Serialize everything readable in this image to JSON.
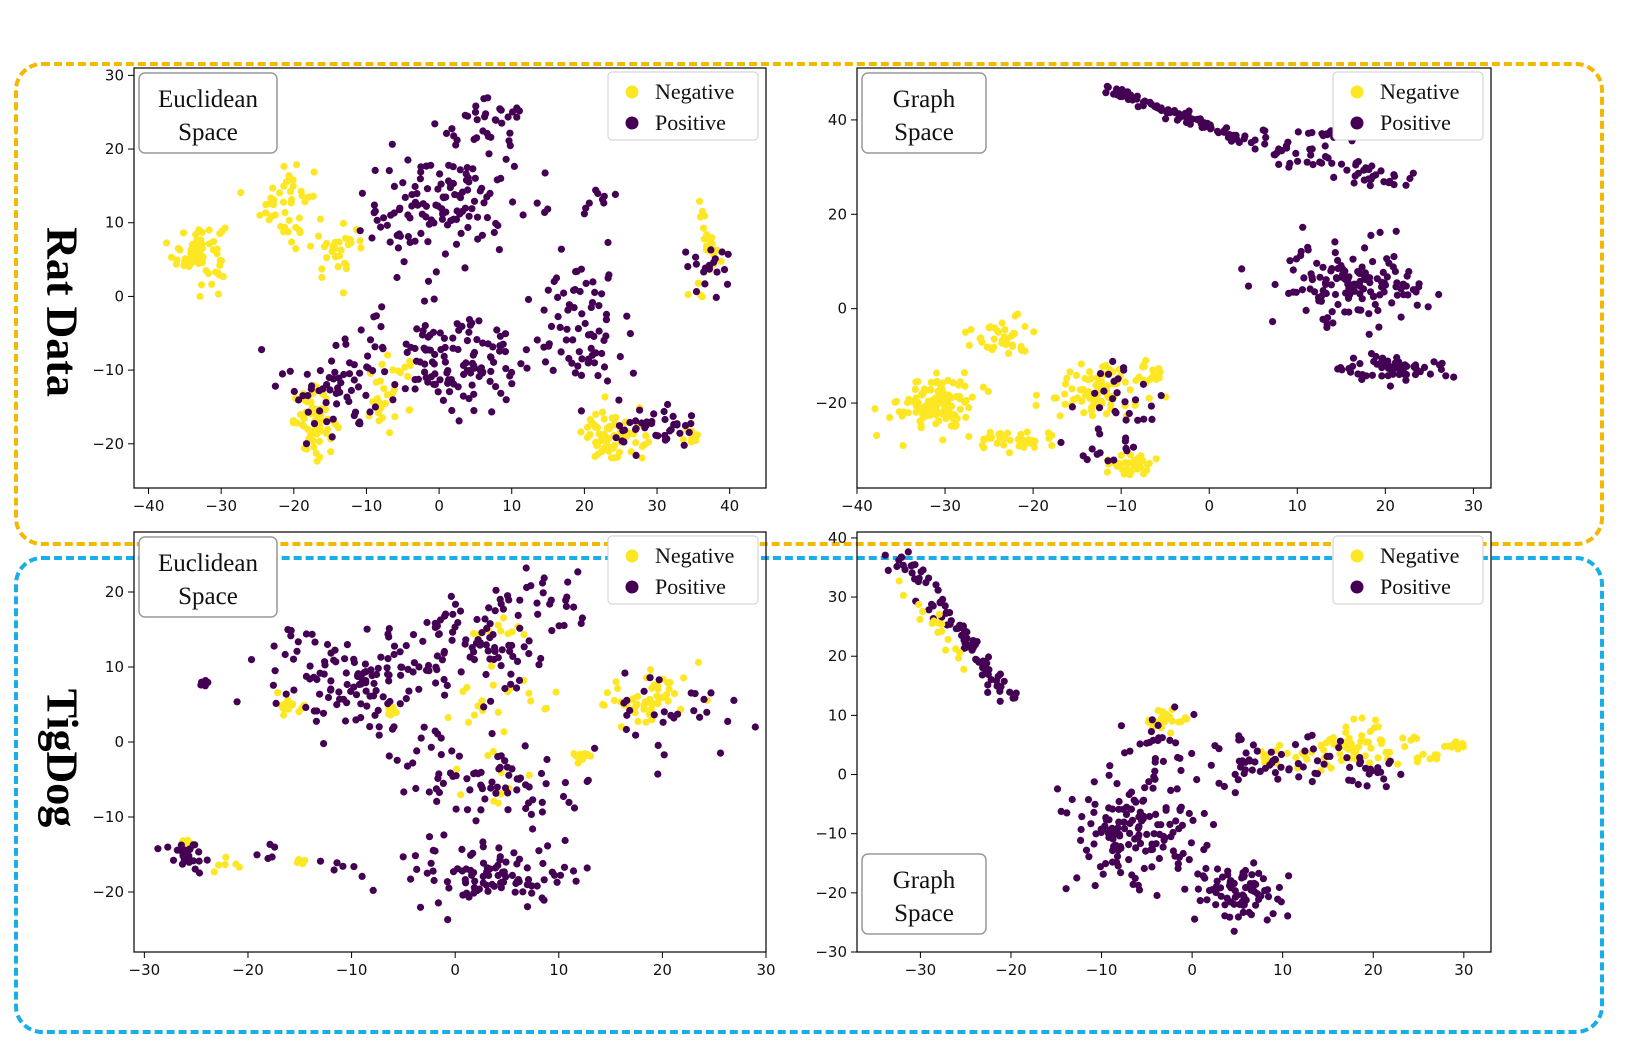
{
  "figure": {
    "group_labels": {
      "rat": "Rat Data",
      "tigdog": "TigDog"
    },
    "colors": {
      "negative": "#fde725",
      "positive": "#440154",
      "rat_frame": "#f5b800",
      "tigdog_frame": "#1aaee8"
    }
  },
  "chart_data": [
    {
      "type": "scatter",
      "group": "Rat Data",
      "annotation": [
        "Euclidean",
        "Space"
      ],
      "legend": [
        "Negative",
        "Positive"
      ],
      "legend_position": "top-right",
      "xlim": [
        -42,
        45
      ],
      "ylim": [
        -26,
        31
      ],
      "xticks": [
        -40,
        -30,
        -20,
        -10,
        0,
        10,
        20,
        30,
        40
      ],
      "yticks": [
        -20,
        -10,
        0,
        10,
        20,
        30
      ],
      "xtick_labels": [
        "−40",
        "−30",
        "−20",
        "−10",
        "0",
        "10",
        "20",
        "30",
        "40"
      ],
      "ytick_labels": [
        "−20",
        "−10",
        "0",
        "10",
        "20",
        "30"
      ],
      "grid": false,
      "series": [
        {
          "name": "Negative",
          "clusters": [
            {
              "center": [
                -33,
                6
              ],
              "spread": [
                3,
                3.5
              ],
              "n": 70
            },
            {
              "center": [
                -21,
                13
              ],
              "spread": [
                3,
                5
              ],
              "n": 45
            },
            {
              "center": [
                -14,
                6
              ],
              "spread": [
                3,
                3
              ],
              "n": 30
            },
            {
              "center": [
                -17,
                -17
              ],
              "spread": [
                2.5,
                3.5
              ],
              "n": 60
            },
            {
              "center": [
                -7,
                -13
              ],
              "spread": [
                4,
                4
              ],
              "n": 30
            },
            {
              "center": [
                24,
                -19
              ],
              "spread": [
                3.5,
                3
              ],
              "n": 70
            },
            {
              "center": [
                37,
                8
              ],
              "spread": [
                1,
                3
              ],
              "n": 25
            },
            {
              "center": [
                35,
                -19
              ],
              "spread": [
                1.5,
                1
              ],
              "n": 8
            },
            {
              "center": [
                36,
                1
              ],
              "spread": [
                1,
                1
              ],
              "n": 4
            }
          ]
        },
        {
          "name": "Positive",
          "clusters": [
            {
              "center": [
                0,
                12
              ],
              "spread": [
                9,
                7
              ],
              "n": 130
            },
            {
              "center": [
                -14,
                -12
              ],
              "spread": [
                6,
                6
              ],
              "n": 60
            },
            {
              "center": [
                2,
                -8
              ],
              "spread": [
                10,
                6
              ],
              "n": 130
            },
            {
              "center": [
                20,
                -4
              ],
              "spread": [
                6,
                8
              ],
              "n": 70
            },
            {
              "center": [
                30,
                -18
              ],
              "spread": [
                5,
                3
              ],
              "n": 40
            },
            {
              "center": [
                37,
                3
              ],
              "spread": [
                3,
                3
              ],
              "n": 20
            },
            {
              "center": [
                22,
                13
              ],
              "spread": [
                2,
                2
              ],
              "n": 8
            },
            {
              "center": [
                7,
                24
              ],
              "spread": [
                4,
                3
              ],
              "n": 30
            }
          ]
        }
      ]
    },
    {
      "type": "scatter",
      "group": "Rat Data",
      "annotation": [
        "Graph",
        "Space"
      ],
      "legend": [
        "Negative",
        "Positive"
      ],
      "legend_position": "top-right",
      "xlim": [
        -40,
        32
      ],
      "ylim": [
        -38,
        51
      ],
      "xticks": [
        -40,
        -30,
        -20,
        -10,
        0,
        10,
        20,
        30
      ],
      "yticks": [
        -20,
        0,
        20,
        40
      ],
      "xtick_labels": [
        "−40",
        "−30",
        "−20",
        "−10",
        "0",
        "10",
        "20",
        "30"
      ],
      "ytick_labels": [
        "−20",
        "0",
        "20",
        "40"
      ],
      "grid": false,
      "series": [
        {
          "name": "Negative",
          "clusters": [
            {
              "center": [
                -31,
                -20
              ],
              "spread": [
                3.5,
                5
              ],
              "n": 120
            },
            {
              "center": [
                -22,
                -28
              ],
              "spread": [
                4,
                2
              ],
              "n": 40
            },
            {
              "center": [
                -24,
                -6
              ],
              "spread": [
                3,
                3
              ],
              "n": 40
            },
            {
              "center": [
                -13,
                -18
              ],
              "spread": [
                5,
                5
              ],
              "n": 80
            },
            {
              "center": [
                -9,
                -33
              ],
              "spread": [
                2,
                2
              ],
              "n": 40
            },
            {
              "center": [
                -7,
                -14
              ],
              "spread": [
                2,
                2
              ],
              "n": 20
            }
          ]
        },
        {
          "name": "Positive",
          "line": {
            "from": [
              -12,
              47
            ],
            "to": [
              5,
              35
            ],
            "n": 90,
            "jitter": 1
          }
        },
        {
          "name": "Positive",
          "line": {
            "from": [
              5,
              35
            ],
            "to": [
              22,
              27
            ],
            "n": 60,
            "jitter": 2.5
          }
        },
        {
          "name": "Positive",
          "clusters": [
            {
              "center": [
                14,
                37
              ],
              "spread": [
                3,
                1
              ],
              "n": 25
            },
            {
              "center": [
                16,
                5
              ],
              "spread": [
                7,
                7
              ],
              "n": 140
            },
            {
              "center": [
                21,
                -13
              ],
              "spread": [
                5,
                2.5
              ],
              "n": 60
            },
            {
              "center": [
                -10,
                -20
              ],
              "spread": [
                4,
                8
              ],
              "n": 30
            },
            {
              "center": [
                -12,
                -31
              ],
              "spread": [
                3,
                2
              ],
              "n": 10
            }
          ]
        }
      ]
    },
    {
      "type": "scatter",
      "group": "TigDog",
      "annotation": [
        "Euclidean",
        "Space"
      ],
      "legend": [
        "Negative",
        "Positive"
      ],
      "legend_position": "top-right",
      "xlim": [
        -31,
        30
      ],
      "ylim": [
        -28,
        28
      ],
      "xticks": [
        -30,
        -20,
        -10,
        0,
        10,
        20,
        30
      ],
      "yticks": [
        -20,
        -10,
        0,
        10,
        20
      ],
      "xtick_labels": [
        "−30",
        "−20",
        "−10",
        "0",
        "10",
        "20",
        "30"
      ],
      "ytick_labels": [
        "−20",
        "−10",
        "0",
        "10",
        "20"
      ],
      "grid": false,
      "series": [
        {
          "name": "Negative",
          "clusters": [
            {
              "center": [
                19,
                6
              ],
              "spread": [
                4,
                3
              ],
              "n": 55
            },
            {
              "center": [
                -16,
                5
              ],
              "spread": [
                1.5,
                1.5
              ],
              "n": 15
            },
            {
              "center": [
                12,
                -2
              ],
              "spread": [
                0.8,
                0.8
              ],
              "n": 12
            },
            {
              "center": [
                -26,
                -14
              ],
              "spread": [
                1,
                0.8
              ],
              "n": 12
            },
            {
              "center": [
                -15,
                -16
              ],
              "spread": [
                0.6,
                0.6
              ],
              "n": 6
            },
            {
              "center": [
                -6,
                4
              ],
              "spread": [
                0.6,
                0.6
              ],
              "n": 6
            },
            {
              "center": [
                4,
                15
              ],
              "spread": [
                2,
                1.5
              ],
              "n": 10
            },
            {
              "center": [
                5,
                5
              ],
              "spread": [
                4,
                5
              ],
              "n": 20
            },
            {
              "center": [
                4,
                -6
              ],
              "spread": [
                3,
                3
              ],
              "n": 12
            },
            {
              "center": [
                -22,
                -16
              ],
              "spread": [
                2,
                1
              ],
              "n": 6
            }
          ]
        },
        {
          "name": "Positive",
          "clusters": [
            {
              "center": [
                -10,
                8
              ],
              "spread": [
                7,
                6
              ],
              "n": 120
            },
            {
              "center": [
                2,
                13
              ],
              "spread": [
                6,
                6
              ],
              "n": 90
            },
            {
              "center": [
                3,
                -5
              ],
              "spread": [
                8,
                5
              ],
              "n": 80
            },
            {
              "center": [
                3,
                -18
              ],
              "spread": [
                7,
                3.5
              ],
              "n": 100
            },
            {
              "center": [
                -26,
                -15
              ],
              "spread": [
                2,
                2
              ],
              "n": 25
            },
            {
              "center": [
                -24.5,
                8
              ],
              "spread": [
                0.5,
                0.5
              ],
              "n": 8
            },
            {
              "center": [
                20,
                4
              ],
              "spread": [
                6,
                4
              ],
              "n": 30
            },
            {
              "center": [
                9,
                20
              ],
              "spread": [
                4,
                4
              ],
              "n": 20
            },
            {
              "center": [
                -18,
                -15
              ],
              "spread": [
                1,
                1
              ],
              "n": 5
            },
            {
              "center": [
                -12,
                -16
              ],
              "spread": [
                2,
                1
              ],
              "n": 5
            }
          ]
        }
      ]
    },
    {
      "type": "scatter",
      "group": "TigDog",
      "annotation": [
        "Graph",
        "Space"
      ],
      "annotation_position": "bottom-left",
      "legend": [
        "Negative",
        "Positive"
      ],
      "legend_position": "top-right",
      "xlim": [
        -37,
        33
      ],
      "ylim": [
        -30,
        41
      ],
      "xticks": [
        -30,
        -20,
        -10,
        0,
        10,
        20,
        30
      ],
      "yticks": [
        -30,
        -20,
        -10,
        0,
        10,
        20,
        30,
        40
      ],
      "xtick_labels": [
        "−30",
        "−20",
        "−10",
        "0",
        "10",
        "20",
        "30"
      ],
      "ytick_labels": [
        "−30",
        "−20",
        "−10",
        "0",
        "10",
        "20",
        "30",
        "40"
      ],
      "grid": false,
      "series": [
        {
          "name": "Positive",
          "line": {
            "from": [
              -33,
              38
            ],
            "to": [
              -20,
              13
            ],
            "n": 90,
            "jitter": 1.5
          }
        },
        {
          "name": "Negative",
          "line": {
            "from": [
              -33,
              33
            ],
            "to": [
              -24,
              17
            ],
            "n": 18,
            "jitter": 1.5
          }
        },
        {
          "name": "Negative",
          "clusters": [
            {
              "center": [
                -3,
                9
              ],
              "spread": [
                1.5,
                1.5
              ],
              "n": 30
            },
            {
              "center": [
                19,
                5
              ],
              "spread": [
                4,
                3
              ],
              "n": 50
            },
            {
              "center": [
                29,
                5
              ],
              "spread": [
                1,
                0.5
              ],
              "n": 10
            },
            {
              "center": [
                12,
                3
              ],
              "spread": [
                6,
                3
              ],
              "n": 25
            },
            {
              "center": [
                26,
                3
              ],
              "spread": [
                1.5,
                1
              ],
              "n": 8
            }
          ]
        },
        {
          "name": "Positive",
          "clusters": [
            {
              "center": [
                -6,
                -10
              ],
              "spread": [
                6,
                8
              ],
              "n": 150
            },
            {
              "center": [
                5,
                -20
              ],
              "spread": [
                4,
                4
              ],
              "n": 80
            },
            {
              "center": [
                8,
                2
              ],
              "spread": [
                7,
                4
              ],
              "n": 60
            },
            {
              "center": [
                -4,
                5
              ],
              "spread": [
                3,
                4
              ],
              "n": 20
            },
            {
              "center": [
                20,
                0
              ],
              "spread": [
                3,
                3
              ],
              "n": 20
            }
          ]
        }
      ]
    }
  ]
}
